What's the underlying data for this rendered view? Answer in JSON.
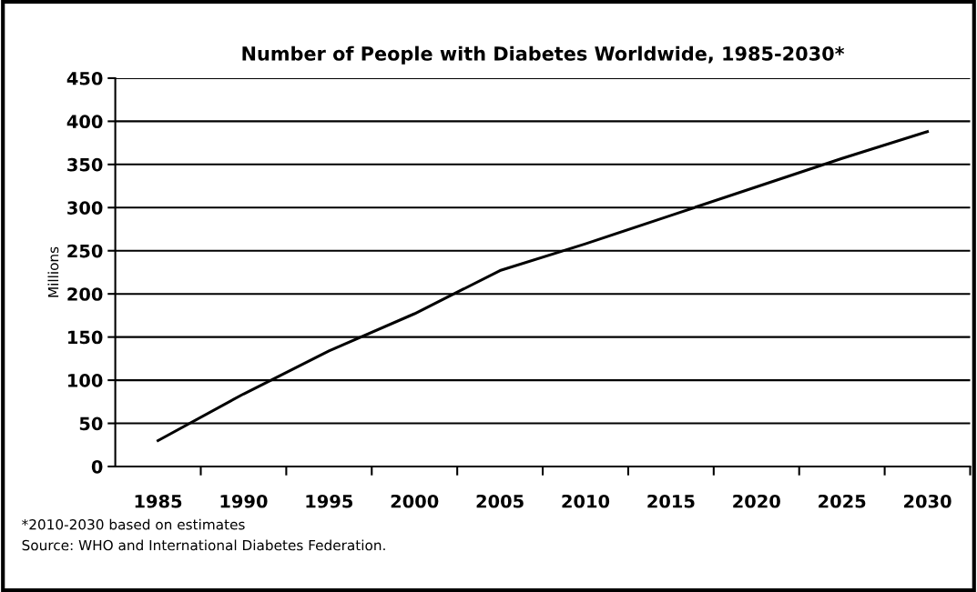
{
  "chart_data": {
    "type": "line",
    "title": "Number of People with Diabetes Worldwide, 1985-2030*",
    "ylabel": "Millions",
    "categories": [
      "1985",
      "1990",
      "1995",
      "2000",
      "2005",
      "2010",
      "2015",
      "2020",
      "2025",
      "2030"
    ],
    "series": [
      {
        "color": "#000000",
        "values": [
          30,
          84,
          134,
          177,
          227,
          258,
          291,
          324,
          357,
          388
        ]
      }
    ],
    "ylim": [
      0,
      450
    ],
    "yticks": [
      0,
      50,
      100,
      150,
      200,
      250,
      300,
      350,
      400,
      450
    ],
    "grid": "y",
    "marker": "none",
    "line_style": "solid",
    "annotations": [
      "*2010-2030 based on estimates",
      "Source: WHO and International Diabetes Federation."
    ]
  }
}
